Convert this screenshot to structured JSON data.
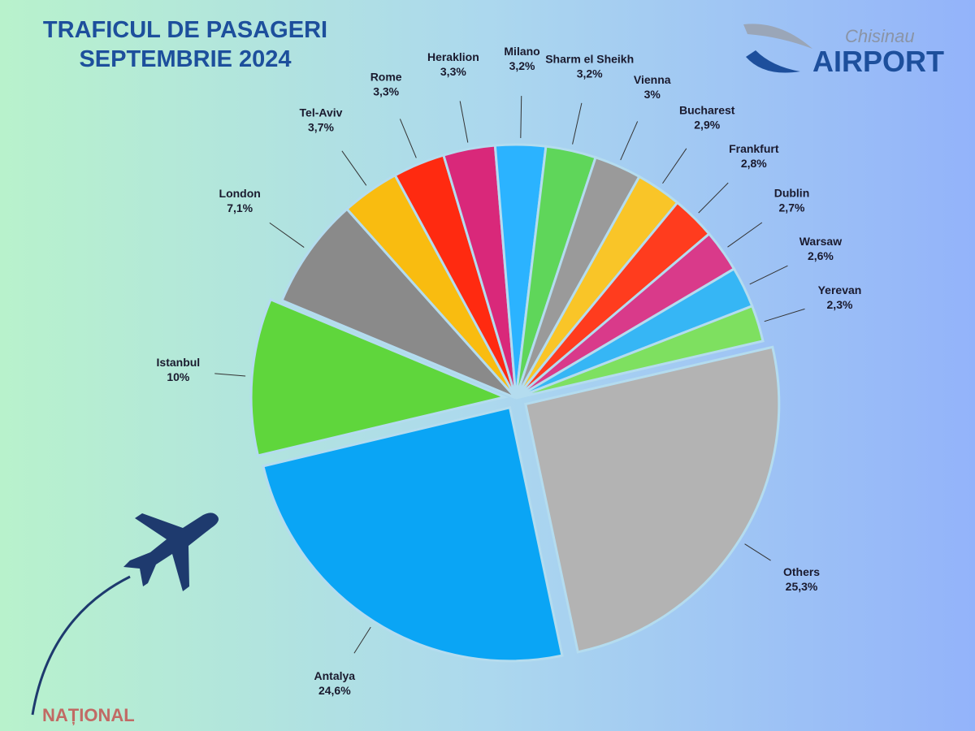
{
  "chart_data": {
    "type": "pie",
    "title": "TRAFICUL DE PASAGERI",
    "subtitle": "SEPTEMBRIE 2024",
    "categories": [
      "Others",
      "Antalya",
      "Istanbul",
      "London",
      "Tel-Aviv",
      "Rome",
      "Heraklion",
      "Milano",
      "Sharm el Sheikh",
      "Vienna",
      "Bucharest",
      "Frankfurt",
      "Dublin",
      "Warsaw",
      "Yerevan"
    ],
    "values": [
      25.3,
      24.6,
      10,
      7.1,
      3.7,
      3.3,
      3.3,
      3.2,
      3.2,
      3,
      2.9,
      2.8,
      2.7,
      2.6,
      2.3
    ],
    "value_labels": [
      "25,3%",
      "24,6%",
      "10%",
      "7,1%",
      "3,7%",
      "3,3%",
      "3,3%",
      "3,2%",
      "3,2%",
      "3%",
      "2,9%",
      "2,8%",
      "2,7%",
      "2,6%",
      "2,3%"
    ],
    "colors": [
      "#b3b3b3",
      "#0aa5f5",
      "#5fd63c",
      "#8a8a8a",
      "#f9bc10",
      "#ff2a10",
      "#d9287a",
      "#2bb3ff",
      "#5fd65a",
      "#9a9a9a",
      "#f9c528",
      "#ff3c1e",
      "#d93a8a",
      "#36b6f5",
      "#7ee060"
    ]
  },
  "logo": {
    "top": "Chisinau",
    "bottom": "AIRPORT"
  },
  "watermark": "NAȚIONAL"
}
